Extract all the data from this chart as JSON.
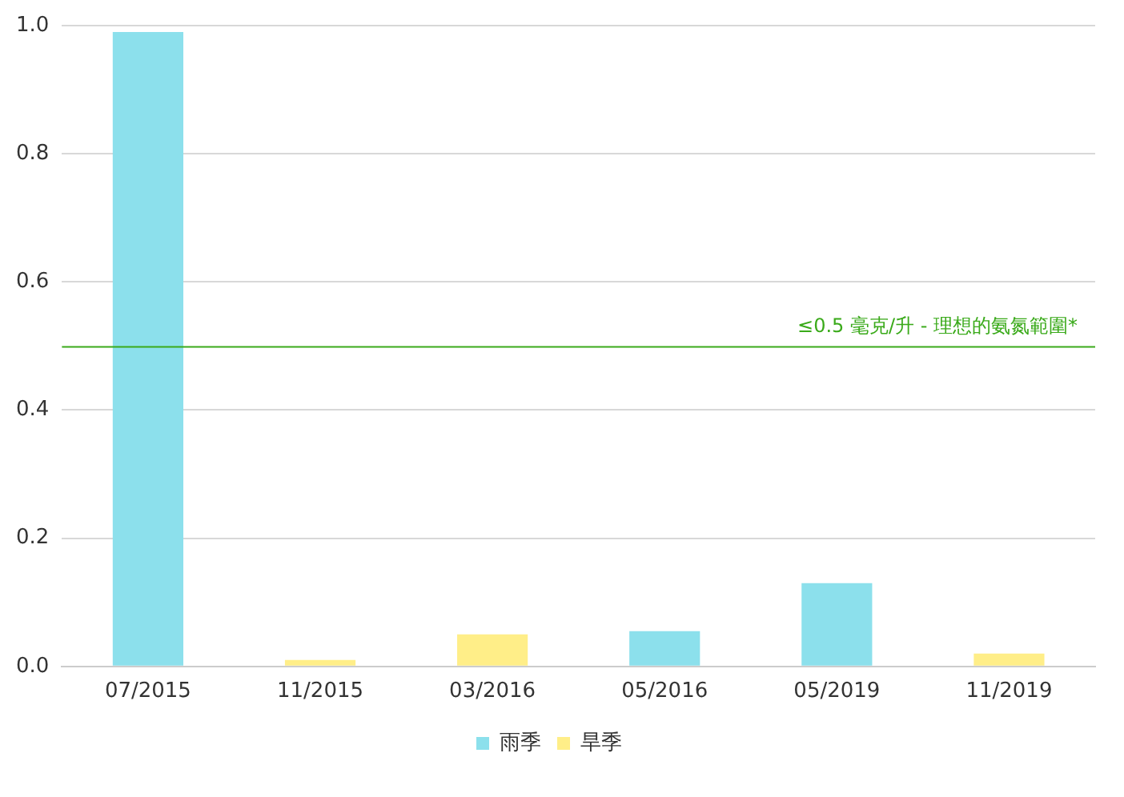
{
  "chart_data": {
    "type": "bar",
    "categories": [
      "07/2015",
      "11/2015",
      "03/2016",
      "05/2016",
      "05/2019",
      "11/2019"
    ],
    "series": [
      {
        "name": "雨季",
        "color": "#8ce0ec",
        "values": [
          0.99,
          null,
          null,
          0.055,
          0.13,
          null
        ]
      },
      {
        "name": "旱季",
        "color": "#ffee88",
        "values": [
          0,
          0.01,
          0.05,
          null,
          null,
          0.02
        ]
      }
    ],
    "ylim": [
      0,
      1.0
    ],
    "yticks": [
      {
        "value": 0,
        "label": "0.0"
      },
      {
        "value": 0.2,
        "label": "0.2"
      },
      {
        "value": 0.4,
        "label": "0.4"
      },
      {
        "value": 0.6,
        "label": "0.6"
      },
      {
        "value": 0.8,
        "label": "0.8"
      },
      {
        "value": 1.0,
        "label": "1.0"
      }
    ],
    "ref_lines": [
      {
        "axis": "y",
        "value": 0.5,
        "label": "≤0.5 毫克/升 - 理想的氨氮範圍*",
        "color": "#3aaa1a"
      }
    ],
    "grid": "y",
    "legend": "bottom"
  }
}
